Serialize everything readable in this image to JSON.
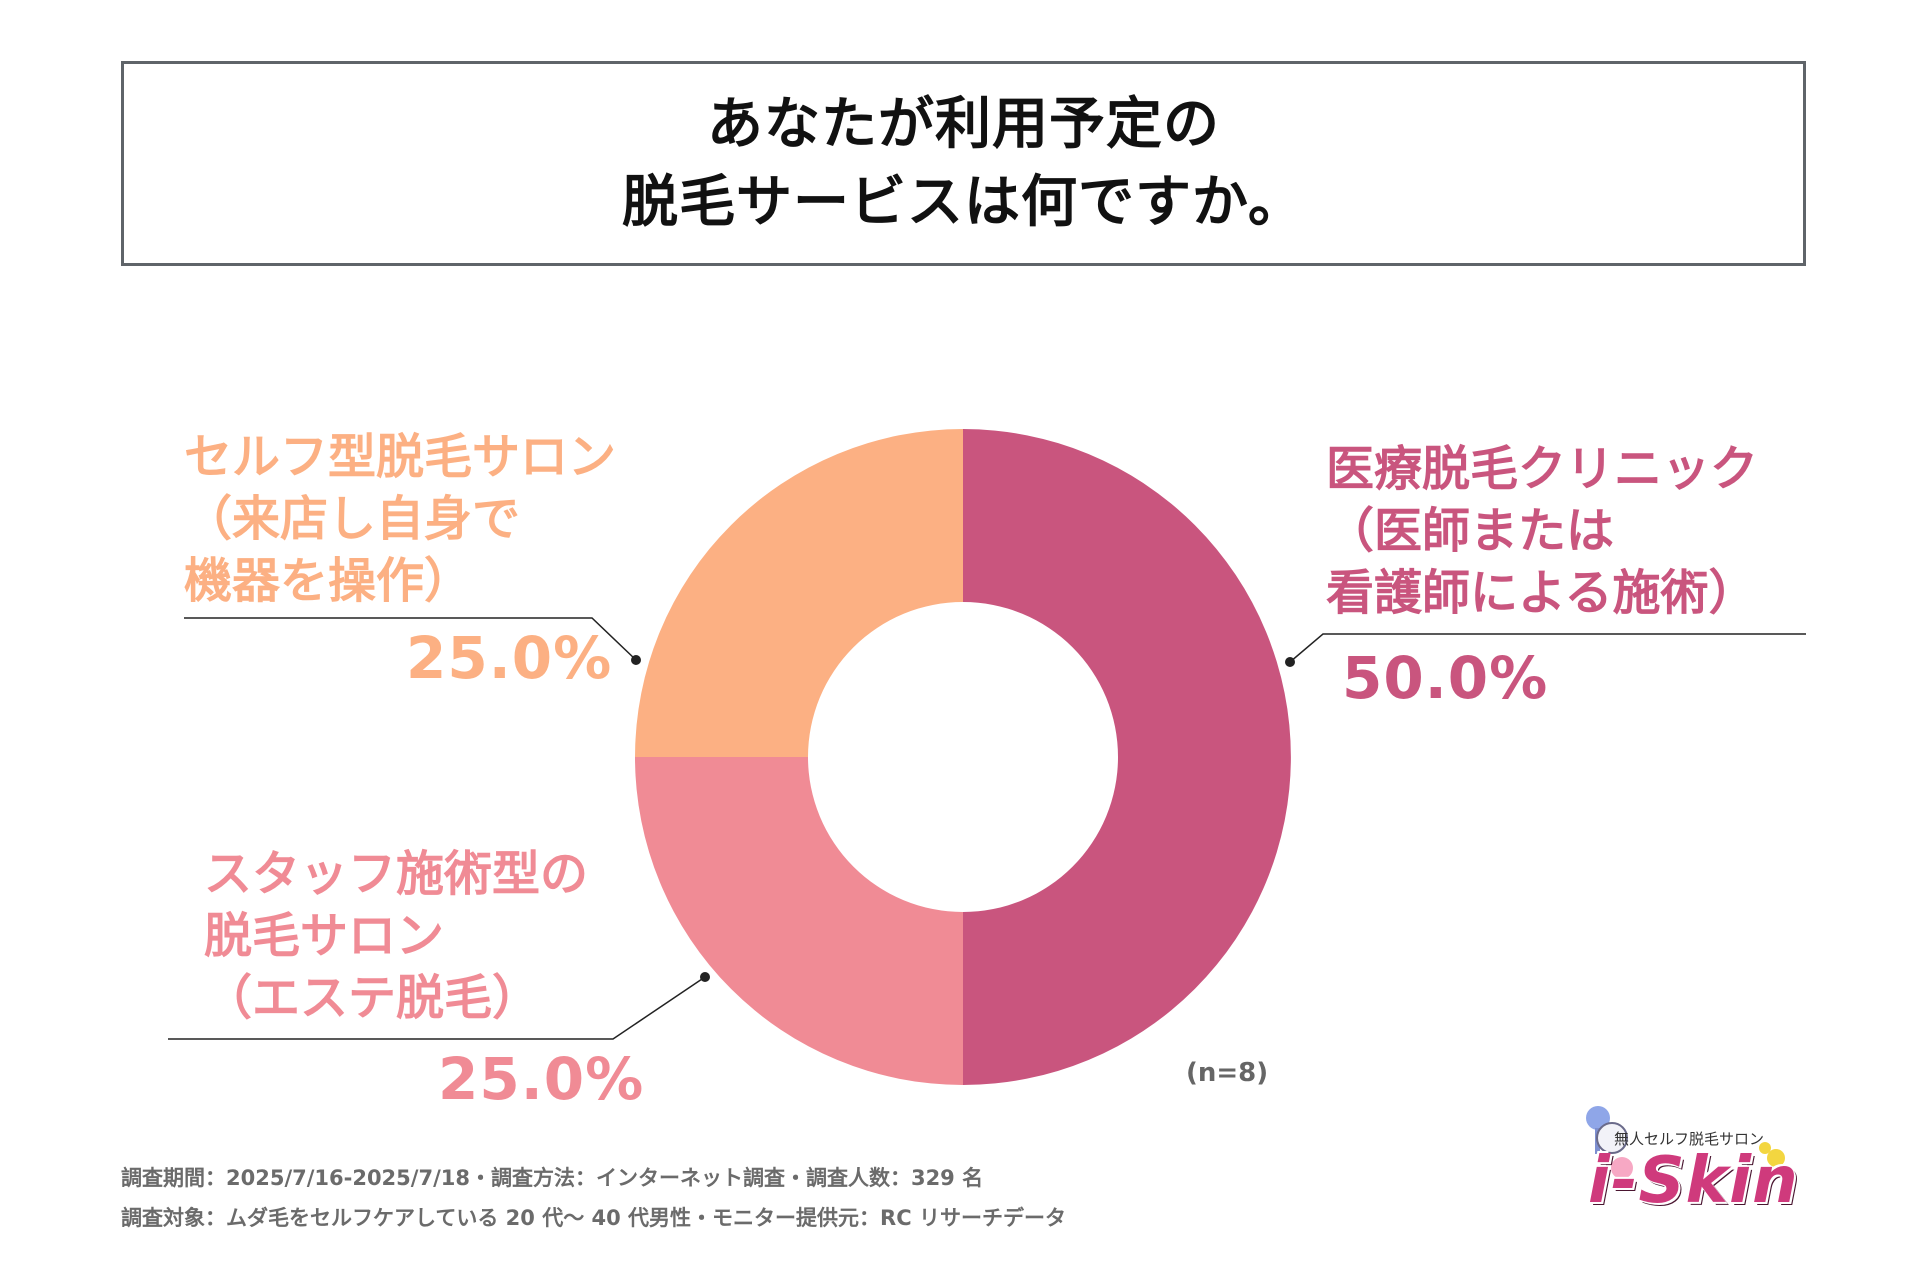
{
  "title": {
    "line1": "あなたが利用予定の",
    "line2": "脱毛サービスは何ですか。"
  },
  "chart_data": {
    "type": "pie",
    "subtype": "donut",
    "categories": [
      "医療脱毛クリニック（医師または看護師による施術）",
      "スタッフ施術型の脱毛サロン（エステ脱毛）",
      "セルフ型脱毛サロン（来店し自身で機器を操作）"
    ],
    "values": [
      50.0,
      25.0,
      25.0
    ],
    "value_labels": [
      "50.0%",
      "25.0%",
      "25.0%"
    ],
    "colors": [
      "#c9557e",
      "#f08b95",
      "#fcb083"
    ],
    "sample_note": "(n=8)"
  },
  "labels": {
    "medical": {
      "lines": [
        "医療脱毛クリニック",
        "（医師または",
        "看護師による施術）"
      ],
      "value": "50.0%",
      "color": "#c9557e"
    },
    "staff": {
      "lines": [
        "スタッフ施術型の",
        "脱毛サロン",
        "（エステ脱毛）"
      ],
      "value": "25.0%",
      "color": "#f08b95"
    },
    "self": {
      "lines": [
        "セルフ型脱毛サロン",
        "（来店し自身で",
        "機器を操作）"
      ],
      "value": "25.0%",
      "color": "#fcb083"
    }
  },
  "footer": {
    "line1": "調査期間：2025/7/16-2025/7/18・調査方法：インターネット調査・調査人数：329 名",
    "line2": "調査対象：ムダ毛をセルフケアしている 20 代～ 40 代男性・モニター提供元：RC リサーチデータ"
  },
  "logo": {
    "tagline": "無人セルフ脱毛サロン",
    "wordmark": "i-Skin"
  }
}
